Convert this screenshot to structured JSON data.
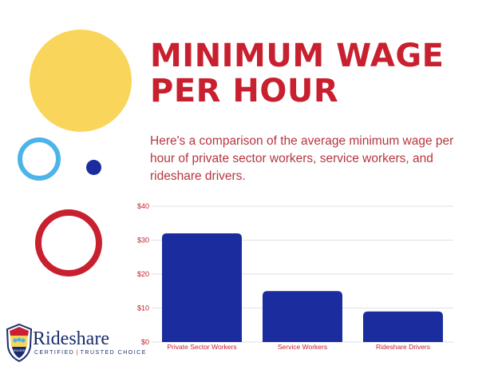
{
  "title": "MINIMUM WAGE PER HOUR",
  "subtitle": "Here's a comparison of the average minimum wage per hour of private sector workers, service workers, and rideshare drivers.",
  "brand": {
    "name": "Rideshare",
    "tag1": "CERTIFIED",
    "tag2": "TRUSTED CHOICE",
    "badge": "DRIVERS"
  },
  "colors": {
    "title": "#c8202f",
    "bar": "#1a2c9e",
    "tick": "#c8202f",
    "yellow": "#f9d65b",
    "light_blue": "#4db4ea",
    "red": "#c8202f",
    "navy": "#1a2c6e"
  },
  "chart_data": {
    "type": "bar",
    "categories": [
      "Private Sector Workers",
      "Service Workers",
      "Rideshare Drivers"
    ],
    "values": [
      32,
      15,
      9
    ],
    "ylim": [
      0,
      40
    ],
    "yticks": [
      "$0",
      "$10",
      "$20",
      "$30",
      "$40"
    ],
    "ytick_values": [
      0,
      10,
      20,
      30,
      40
    ],
    "title": "",
    "xlabel": "",
    "ylabel": "",
    "grid": true,
    "legend": "none"
  }
}
